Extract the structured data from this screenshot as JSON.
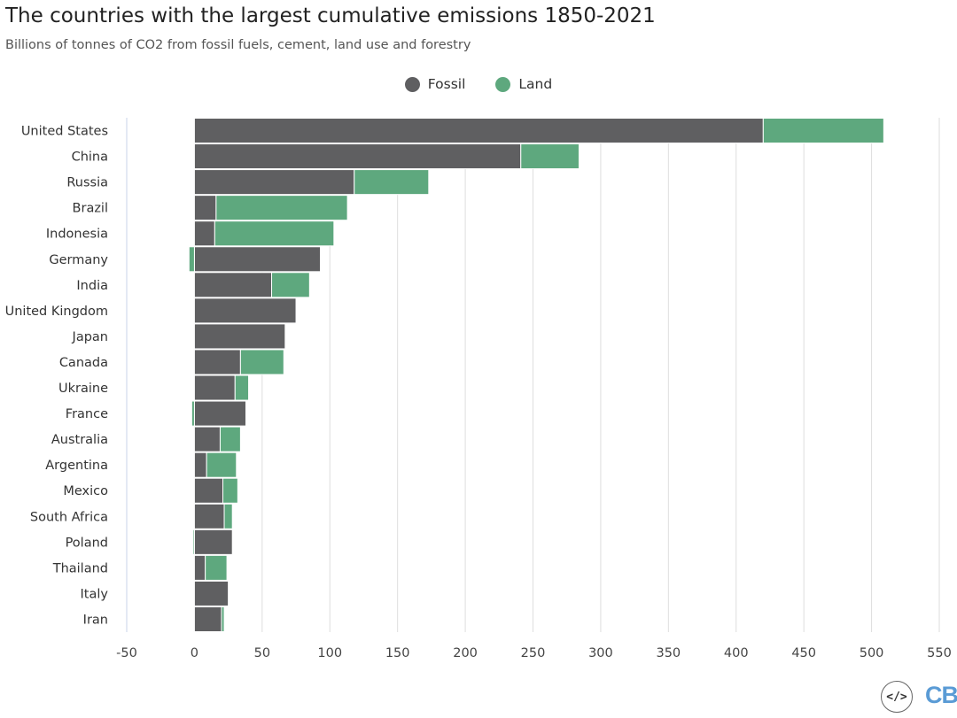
{
  "header": {
    "title": "The countries with the largest cumulative emissions 1850-2021",
    "subtitle": "Billions of tonnes of CO2 from fossil fuels, cement, land use and forestry"
  },
  "legend": [
    {
      "label": "Fossil",
      "color": "#5f5f61"
    },
    {
      "label": "Land",
      "color": "#5ea87e"
    }
  ],
  "chart_data": {
    "type": "bar",
    "orientation": "horizontal",
    "stacked": true,
    "title": "The countries with the largest cumulative emissions 1850-2021",
    "subtitle": "Billions of tonnes of CO2 from fossil fuels, cement, land use and forestry",
    "xlim": [
      -50,
      550
    ],
    "xticks": [
      -50,
      0,
      50,
      100,
      150,
      200,
      250,
      300,
      350,
      400,
      450,
      500,
      550
    ],
    "grid": "vertical",
    "legend_position": "top-center",
    "categories": [
      "United States",
      "China",
      "Russia",
      "Brazil",
      "Indonesia",
      "Germany",
      "India",
      "United Kingdom",
      "Japan",
      "Canada",
      "Ukraine",
      "France",
      "Australia",
      "Argentina",
      "Mexico",
      "South Africa",
      "Poland",
      "Thailand",
      "Italy",
      "Iran"
    ],
    "series": [
      {
        "name": "Fossil",
        "color": "#5f5f61",
        "values": [
          420,
          241,
          118,
          16,
          15,
          93,
          57,
          75,
          67,
          34,
          30,
          38,
          19,
          9,
          21,
          22,
          28,
          8,
          25,
          20
        ]
      },
      {
        "name": "Land",
        "color": "#5ea87e",
        "values": [
          89,
          43,
          55,
          97,
          88,
          -4,
          28,
          0,
          0,
          32,
          10,
          -2,
          15,
          22,
          11,
          6,
          -1,
          16,
          0,
          2
        ]
      }
    ]
  },
  "footer": {
    "code_icon": "</>",
    "logo": "CB"
  }
}
